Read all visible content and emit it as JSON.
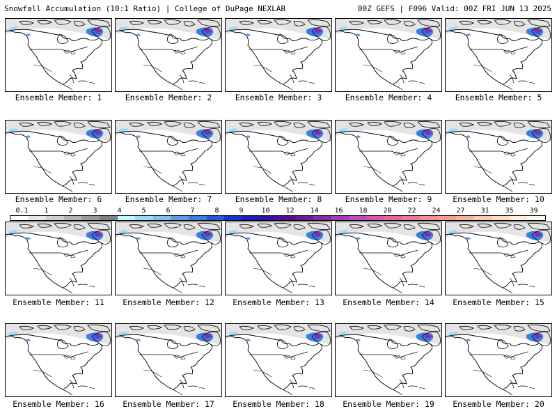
{
  "header": {
    "left": "Snowfall Accumulation (10:1 Ratio) | College of DuPage NEXLAB",
    "right": "00Z GEFS | F096 Valid: 00Z FRI JUN 13 2025"
  },
  "legend": {
    "labels": [
      "0.1",
      "1",
      "2",
      "3",
      "4",
      "5",
      "6",
      "7",
      "8",
      "9",
      "10",
      "12",
      "14",
      "16",
      "18",
      "20",
      "22",
      "24",
      "27",
      "31",
      "35",
      "39"
    ],
    "colors": [
      "#ffffff",
      "#e8e8e8",
      "#cfcfcf",
      "#b4b4b4",
      "#9a9a9a",
      "#808080",
      "#bff6ff",
      "#8fe0f8",
      "#7ec0ee",
      "#5a9ee6",
      "#3a7ee0",
      "#1f5ad8",
      "#0a3ad0",
      "#2018c0",
      "#3a10a8",
      "#54108f",
      "#6c1a9a",
      "#8a2aa8",
      "#a63ab6",
      "#c24ac0",
      "#d856b0",
      "#e8649e",
      "#f07898",
      "#f48c90",
      "#f6a088",
      "#f8b49a",
      "#fac8ac",
      "#fcdcc4",
      "#feeede",
      "#fff6ec"
    ]
  },
  "panels": [
    {
      "label": "Ensemble Member: 1"
    },
    {
      "label": "Ensemble Member: 2"
    },
    {
      "label": "Ensemble Member: 3"
    },
    {
      "label": "Ensemble Member: 4"
    },
    {
      "label": "Ensemble Member: 5"
    },
    {
      "label": "Ensemble Member: 6"
    },
    {
      "label": "Ensemble Member: 7"
    },
    {
      "label": "Ensemble Member: 8"
    },
    {
      "label": "Ensemble Member: 9"
    },
    {
      "label": "Ensemble Member: 10"
    },
    {
      "label": "Ensemble Member: 11"
    },
    {
      "label": "Ensemble Member: 12"
    },
    {
      "label": "Ensemble Member: 13"
    },
    {
      "label": "Ensemble Member: 14"
    },
    {
      "label": "Ensemble Member: 15"
    },
    {
      "label": "Ensemble Member: 16"
    },
    {
      "label": "Ensemble Member: 17"
    },
    {
      "label": "Ensemble Member: 18"
    },
    {
      "label": "Ensemble Member: 19"
    },
    {
      "label": "Ensemble Member: 20"
    }
  ]
}
